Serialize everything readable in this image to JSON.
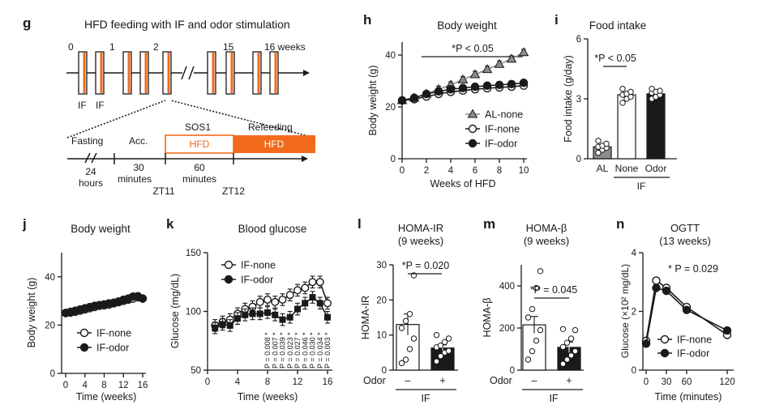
{
  "figure": {
    "panel_letters": [
      "g",
      "h",
      "i",
      "j",
      "k",
      "l",
      "m",
      "n"
    ],
    "accent_color": "#f26a1b",
    "ink_color": "#1a1a1a",
    "gray_color": "#8c8c8c"
  },
  "panel_g": {
    "title": "HFD feeding with IF and odor stimulation",
    "week_ticks": [
      "0",
      "1",
      "2",
      "15",
      "16 weeks"
    ],
    "if_labels": [
      "IF",
      "IF"
    ],
    "phase_fasting": "Fasting",
    "phase_acc": "Acc.",
    "phase_sos": "SOS1",
    "phase_refeeding": "Refeeding",
    "hfd_label": "HFD",
    "dur_24": "24",
    "dur_hours": "hours",
    "dur_30": "30",
    "dur_60": "60",
    "dur_minutes": "minutes",
    "zt11": "ZT11",
    "zt12": "ZT12"
  },
  "chart_data": [
    {
      "panel": "h",
      "type": "line",
      "title": "Body weight",
      "xlabel": "Weeks of HFD",
      "ylabel": "Body weight (g)",
      "xlim": [
        0,
        10
      ],
      "ylim": [
        0,
        45
      ],
      "xticks": [
        0,
        2,
        4,
        6,
        8,
        10
      ],
      "yticks": [
        0,
        20,
        40
      ],
      "annotation": "*P < 0.05",
      "series": [
        {
          "name": "AL-none",
          "x": [
            0,
            1,
            2,
            3,
            4,
            5,
            6,
            7,
            8,
            9,
            10
          ],
          "y": [
            22.5,
            23.5,
            25,
            26.8,
            28.5,
            30.5,
            32.5,
            34.5,
            36.5,
            38.5,
            41
          ]
        },
        {
          "name": "IF-none",
          "x": [
            0,
            1,
            2,
            3,
            4,
            5,
            6,
            7,
            8,
            9,
            10
          ],
          "y": [
            22.5,
            23,
            24,
            25,
            25.8,
            26.3,
            26.8,
            27.2,
            27.5,
            27.8,
            28.2
          ]
        },
        {
          "name": "IF-odor",
          "x": [
            0,
            1,
            2,
            3,
            4,
            5,
            6,
            7,
            8,
            9,
            10
          ],
          "y": [
            22.5,
            23.5,
            25,
            26,
            26.8,
            27.3,
            27.8,
            28.2,
            28.5,
            28.8,
            29.3
          ]
        }
      ]
    },
    {
      "panel": "i",
      "type": "bar",
      "title": "Food intake",
      "ylabel": "Food intake (g/day)",
      "categories": [
        "AL",
        "None",
        "Odor"
      ],
      "group_label": "IF",
      "values": [
        0.6,
        3.2,
        3.25
      ],
      "errors": [
        0.1,
        0.12,
        0.1
      ],
      "points": [
        [
          0.3,
          0.45,
          0.55,
          0.6,
          0.65,
          0.75,
          0.9
        ],
        [
          2.8,
          3.0,
          3.1,
          3.2,
          3.25,
          3.35,
          3.5
        ],
        [
          3.0,
          3.1,
          3.2,
          3.3,
          3.35,
          3.4,
          3.5
        ]
      ],
      "ylim": [
        0,
        6
      ],
      "yticks": [
        0,
        3,
        6
      ],
      "annotation": "*P < 0.05"
    },
    {
      "panel": "j",
      "type": "line",
      "title": "Body weight",
      "xlabel": "Time (weeks)",
      "ylabel": "Body weight (g)",
      "xlim": [
        0,
        16
      ],
      "ylim": [
        0,
        50
      ],
      "xticks": [
        0,
        4,
        8,
        12,
        16
      ],
      "yticks": [
        0,
        20,
        40
      ],
      "series": [
        {
          "name": "IF-none",
          "x": [
            0,
            1,
            2,
            3,
            4,
            5,
            6,
            7,
            8,
            9,
            10,
            11,
            12,
            13,
            14,
            15,
            16
          ],
          "y": [
            25,
            25.2,
            25.5,
            26,
            26.5,
            27,
            27.5,
            28,
            28.2,
            28.5,
            29,
            29.5,
            30,
            30.5,
            31,
            31.5,
            31
          ]
        },
        {
          "name": "IF-odor",
          "x": [
            0,
            1,
            2,
            3,
            4,
            5,
            6,
            7,
            8,
            9,
            10,
            11,
            12,
            13,
            14,
            15,
            16
          ],
          "y": [
            25,
            25.5,
            26,
            26.5,
            27,
            27.5,
            28,
            28.3,
            28.6,
            29,
            29.3,
            29.8,
            30.5,
            31,
            31.8,
            32,
            31
          ]
        }
      ]
    },
    {
      "panel": "k",
      "type": "line",
      "title": "Blood glucose",
      "xlabel": "Time (weeks)",
      "ylabel": "Glucose (mg/dL)",
      "xlim": [
        0,
        16
      ],
      "ylim": [
        50,
        150
      ],
      "xticks": [
        0,
        4,
        8,
        12,
        16
      ],
      "yticks": [
        50,
        100,
        150
      ],
      "series": [
        {
          "name": "IF-none",
          "x": [
            1,
            2,
            3,
            4,
            5,
            6,
            7,
            8,
            9,
            10,
            11,
            12,
            13,
            14,
            15,
            16
          ],
          "y": [
            88,
            91,
            93,
            98,
            102,
            104,
            108,
            110,
            108,
            110,
            114,
            118,
            120,
            125,
            125,
            107
          ]
        },
        {
          "name": "IF-odor",
          "x": [
            1,
            2,
            3,
            4,
            5,
            6,
            7,
            8,
            9,
            10,
            11,
            12,
            13,
            14,
            15,
            16
          ],
          "y": [
            86,
            89,
            88,
            94,
            97,
            98,
            98,
            99,
            97,
            93,
            95,
            102,
            107,
            112,
            107,
            95
          ]
        }
      ],
      "p_values": [
        "P = 0.008 *",
        "P = 0.007 *",
        "P = 0.039 *",
        "P = 0.023 *",
        "P = 0.027 *",
        "P = 0.046 *",
        "P = 0.030 *",
        "P = 0.034 *",
        "P = 0.003 *"
      ]
    },
    {
      "panel": "l",
      "type": "bar",
      "title": "HOMA-IR",
      "subtitle": "(9 weeks)",
      "ylabel": "HOMA-IR",
      "categories": [
        "–",
        "+"
      ],
      "row_label": "Odor",
      "group_label": "IF",
      "values": [
        13,
        6.3
      ],
      "errors": [
        3,
        0.9
      ],
      "points": [
        [
          2,
          3,
          6,
          9,
          12,
          14,
          16,
          27
        ],
        [
          2.5,
          4,
          5,
          5.5,
          6.5,
          7,
          8,
          9,
          10
        ]
      ],
      "ylim": [
        0,
        30
      ],
      "yticks": [
        0,
        10,
        20,
        30
      ],
      "annotation": "*P = 0.020"
    },
    {
      "panel": "m",
      "type": "bar",
      "title": "HOMA-β",
      "subtitle": "(9 weeks)",
      "ylabel": "HOMA-β",
      "categories": [
        "–",
        "+"
      ],
      "row_label": "Odor",
      "group_label": "IF",
      "values": [
        215,
        108
      ],
      "errors": [
        40,
        25
      ],
      "points": [
        [
          50,
          90,
          140,
          190,
          250,
          290,
          390,
          470
        ],
        [
          30,
          50,
          70,
          90,
          110,
          130,
          150,
          190,
          195
        ]
      ],
      "ylim": [
        0,
        500
      ],
      "yticks": [
        0,
        200,
        400
      ],
      "annotation": "*P = 0.045"
    },
    {
      "panel": "n",
      "type": "line",
      "title": "OGTT",
      "subtitle": "(13 weeks)",
      "xlabel": "Time (minutes)",
      "ylabel": "Glucose (×10² mg/dL)",
      "xlim": [
        0,
        120
      ],
      "ylim": [
        0,
        4
      ],
      "xticks": [
        0,
        30,
        60,
        120
      ],
      "yticks": [
        0,
        2,
        4
      ],
      "annotation": "* P = 0.029",
      "series": [
        {
          "name": "IF-none",
          "x": [
            0,
            15,
            30,
            60,
            120
          ],
          "y": [
            1.0,
            3.05,
            2.8,
            2.15,
            1.2
          ]
        },
        {
          "name": "IF-odor",
          "x": [
            0,
            15,
            30,
            60,
            120
          ],
          "y": [
            0.9,
            2.8,
            2.7,
            2.05,
            1.35
          ]
        }
      ]
    }
  ]
}
